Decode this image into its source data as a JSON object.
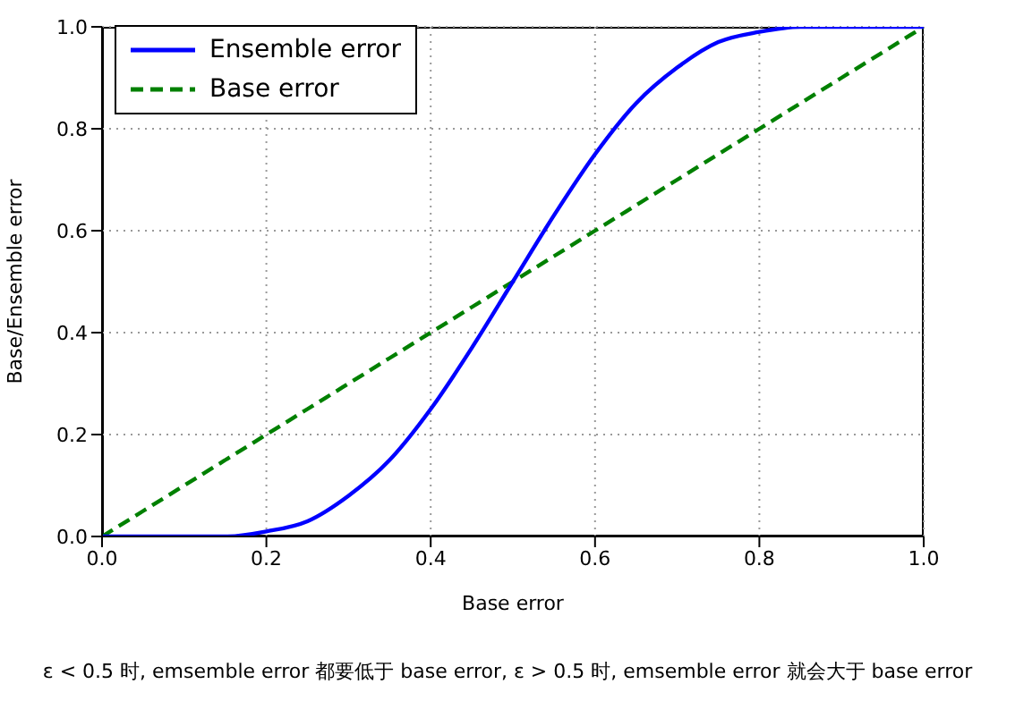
{
  "chart_data": {
    "type": "line",
    "xlabel": "Base error",
    "ylabel": "Base/Ensemble error",
    "x": [
      0,
      0.05,
      0.1,
      0.15,
      0.2,
      0.25,
      0.3,
      0.35,
      0.4,
      0.45,
      0.5,
      0.55,
      0.6,
      0.65,
      0.7,
      0.75,
      0.8,
      0.85,
      0.9,
      0.95,
      1
    ],
    "series": [
      {
        "name": "Ensemble error",
        "color": "#0000ff",
        "line_style": "solid",
        "values": [
          0,
          0,
          0,
          0,
          0.01,
          0.03,
          0.08,
          0.15,
          0.25,
          0.37,
          0.5,
          0.63,
          0.75,
          0.85,
          0.92,
          0.97,
          0.99,
          1,
          1,
          1,
          1
        ]
      },
      {
        "name": "Base error",
        "color": "#008000",
        "line_style": "dashed",
        "values": [
          0,
          0.05,
          0.1,
          0.15,
          0.2,
          0.25,
          0.3,
          0.35,
          0.4,
          0.45,
          0.5,
          0.55,
          0.6,
          0.65,
          0.7,
          0.75,
          0.8,
          0.85,
          0.9,
          0.95,
          1
        ]
      }
    ],
    "xlim": [
      0,
      1
    ],
    "ylim": [
      0,
      1
    ],
    "xticks": [
      {
        "value": 0,
        "label": "0.0"
      },
      {
        "value": 0.2,
        "label": "0.2"
      },
      {
        "value": 0.4,
        "label": "0.4"
      },
      {
        "value": 0.6,
        "label": "0.6"
      },
      {
        "value": 0.8,
        "label": "0.8"
      },
      {
        "value": 1,
        "label": "1.0"
      }
    ],
    "yticks": [
      {
        "value": 0,
        "label": "0.0"
      },
      {
        "value": 0.2,
        "label": "0.2"
      },
      {
        "value": 0.4,
        "label": "0.4"
      },
      {
        "value": 0.6,
        "label": "0.6"
      },
      {
        "value": 0.8,
        "label": "0.8"
      },
      {
        "value": 1,
        "label": "1.0"
      }
    ],
    "grid": true,
    "legend": "top left",
    "marker": "none",
    "annotations": [
      "ε < 0.5 时, emsemble error 都要低于 base error, ε > 0.5 时, emsemble error 就会大于 base error"
    ]
  }
}
